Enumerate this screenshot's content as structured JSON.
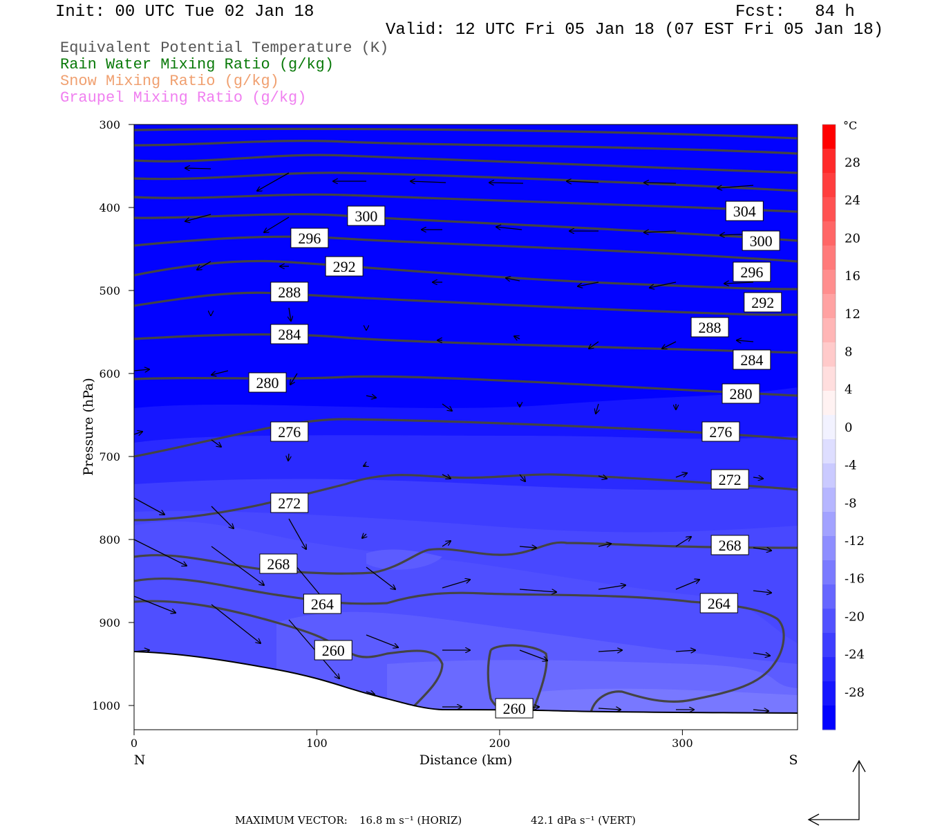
{
  "header": {
    "init": "Init: 00 UTC Tue 02 Jan 18",
    "fcst": "Fcst:   84 h",
    "valid": "Valid: 12 UTC Fri 05 Jan 18 (07 EST Fri 05 Jan 18)"
  },
  "legend": [
    {
      "label": "Equivalent Potential Temperature (K)",
      "color": "#555555"
    },
    {
      "label": "Rain Water Mixing Ratio (g/kg)",
      "color": "#0a7a0a"
    },
    {
      "label": "Snow Mixing Ratio (g/kg)",
      "color": "#f0a070"
    },
    {
      "label": "Graupel Mixing Ratio (g/kg)",
      "color": "#f080f0"
    }
  ],
  "chart_data": {
    "type": "cross-section",
    "x_axis": {
      "label": "Distance (km)",
      "range": [
        0,
        363
      ],
      "ticks": [
        0,
        100,
        200,
        300
      ],
      "left_end": "N",
      "right_end": "S"
    },
    "y_axis": {
      "label": "Pressure (hPa)",
      "range": [
        300,
        1030
      ],
      "ticks": [
        300,
        400,
        500,
        600,
        700,
        800,
        900,
        1000
      ]
    },
    "colorbar": {
      "unit": "°C",
      "labels": [
        28,
        24,
        20,
        16,
        12,
        8,
        4,
        0,
        -4,
        -8,
        -12,
        -16,
        -20,
        -24,
        -28
      ],
      "colors_top_to_bottom": [
        "#ff0000",
        "#ff2a2a",
        "#ff3e3e",
        "#ff5252",
        "#ff6666",
        "#ff7a7a",
        "#ff8e8e",
        "#ffa2a2",
        "#ffb6b6",
        "#ffcaca",
        "#ffdede",
        "#fff2f2",
        "#f2f2ff",
        "#dedeff",
        "#cacaff",
        "#b6b6ff",
        "#a2a2ff",
        "#8e8eff",
        "#7a7aff",
        "#6666ff",
        "#5252ff",
        "#3e3eff",
        "#2a2aff",
        "#1616ff",
        "#0202ff"
      ]
    },
    "theta_e_contours": [
      {
        "value": 304,
        "label_at_km": [
          334
        ]
      },
      {
        "value": 300,
        "label_at_km": [
          127,
          343
        ]
      },
      {
        "value": 296,
        "label_at_km": [
          96,
          338
        ]
      },
      {
        "value": 292,
        "label_at_km": [
          115,
          344
        ]
      },
      {
        "value": 288,
        "label_at_km": [
          85,
          315
        ]
      },
      {
        "value": 284,
        "label_at_km": [
          85,
          338
        ]
      },
      {
        "value": 280,
        "label_at_km": [
          73,
          332
        ]
      },
      {
        "value": 276,
        "label_at_km": [
          85,
          321
        ]
      },
      {
        "value": 272,
        "label_at_km": [
          85,
          326
        ]
      },
      {
        "value": 268,
        "label_at_km": [
          79,
          326
        ]
      },
      {
        "value": 264,
        "label_at_km": [
          103,
          320
        ]
      },
      {
        "value": 260,
        "label_at_km": [
          109,
          208
        ]
      }
    ]
  },
  "footer": {
    "max_vector_label": "MAXIMUM VECTOR:",
    "horiz": "16.8 m s⁻¹ (HORIZ)",
    "vert": "42.1 dPa s⁻¹ (VERT)"
  }
}
